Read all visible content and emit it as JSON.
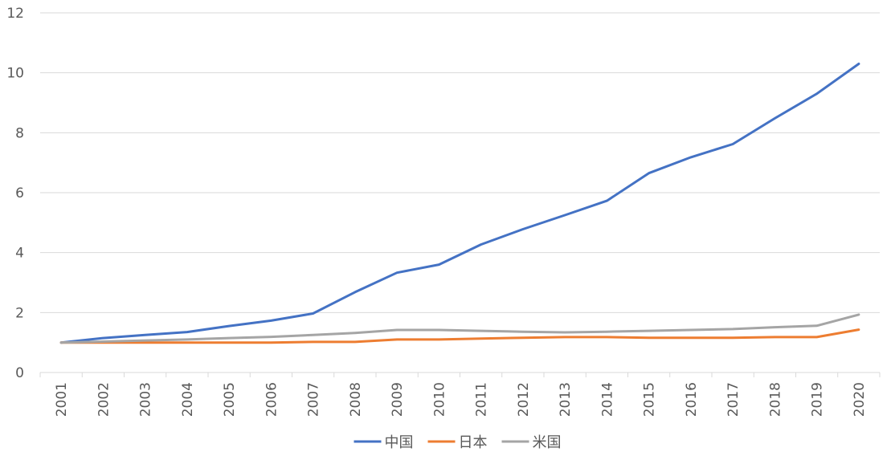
{
  "chart_data": {
    "type": "line",
    "title": "",
    "xlabel": "",
    "ylabel": "",
    "categories": [
      "2001",
      "2002",
      "2003",
      "2004",
      "2005",
      "2006",
      "2007",
      "2008",
      "2009",
      "2010",
      "2011",
      "2012",
      "2013",
      "2014",
      "2015",
      "2016",
      "2017",
      "2018",
      "2019",
      "2020"
    ],
    "yticks": [
      "0",
      "2",
      "4",
      "6",
      "8",
      "10",
      "12"
    ],
    "ylim": [
      0,
      12
    ],
    "grid": true,
    "legend_position": "bottom",
    "series": [
      {
        "name": "中国",
        "color": "#4472c4",
        "values": [
          1.0,
          1.15,
          1.25,
          1.35,
          1.55,
          1.73,
          1.97,
          2.68,
          3.33,
          3.6,
          4.27,
          4.78,
          5.25,
          5.73,
          6.65,
          7.18,
          7.62,
          8.48,
          9.3,
          10.3
        ]
      },
      {
        "name": "日本",
        "color": "#ed7d31",
        "values": [
          1.0,
          1.0,
          1.0,
          1.0,
          1.0,
          1.0,
          1.02,
          1.02,
          1.1,
          1.1,
          1.13,
          1.16,
          1.18,
          1.18,
          1.16,
          1.16,
          1.16,
          1.18,
          1.18,
          1.43
        ]
      },
      {
        "name": "米国",
        "color": "#a5a5a5",
        "values": [
          1.0,
          1.03,
          1.07,
          1.1,
          1.15,
          1.19,
          1.25,
          1.32,
          1.42,
          1.42,
          1.39,
          1.36,
          1.34,
          1.36,
          1.39,
          1.42,
          1.45,
          1.51,
          1.56,
          1.93
        ]
      }
    ]
  }
}
